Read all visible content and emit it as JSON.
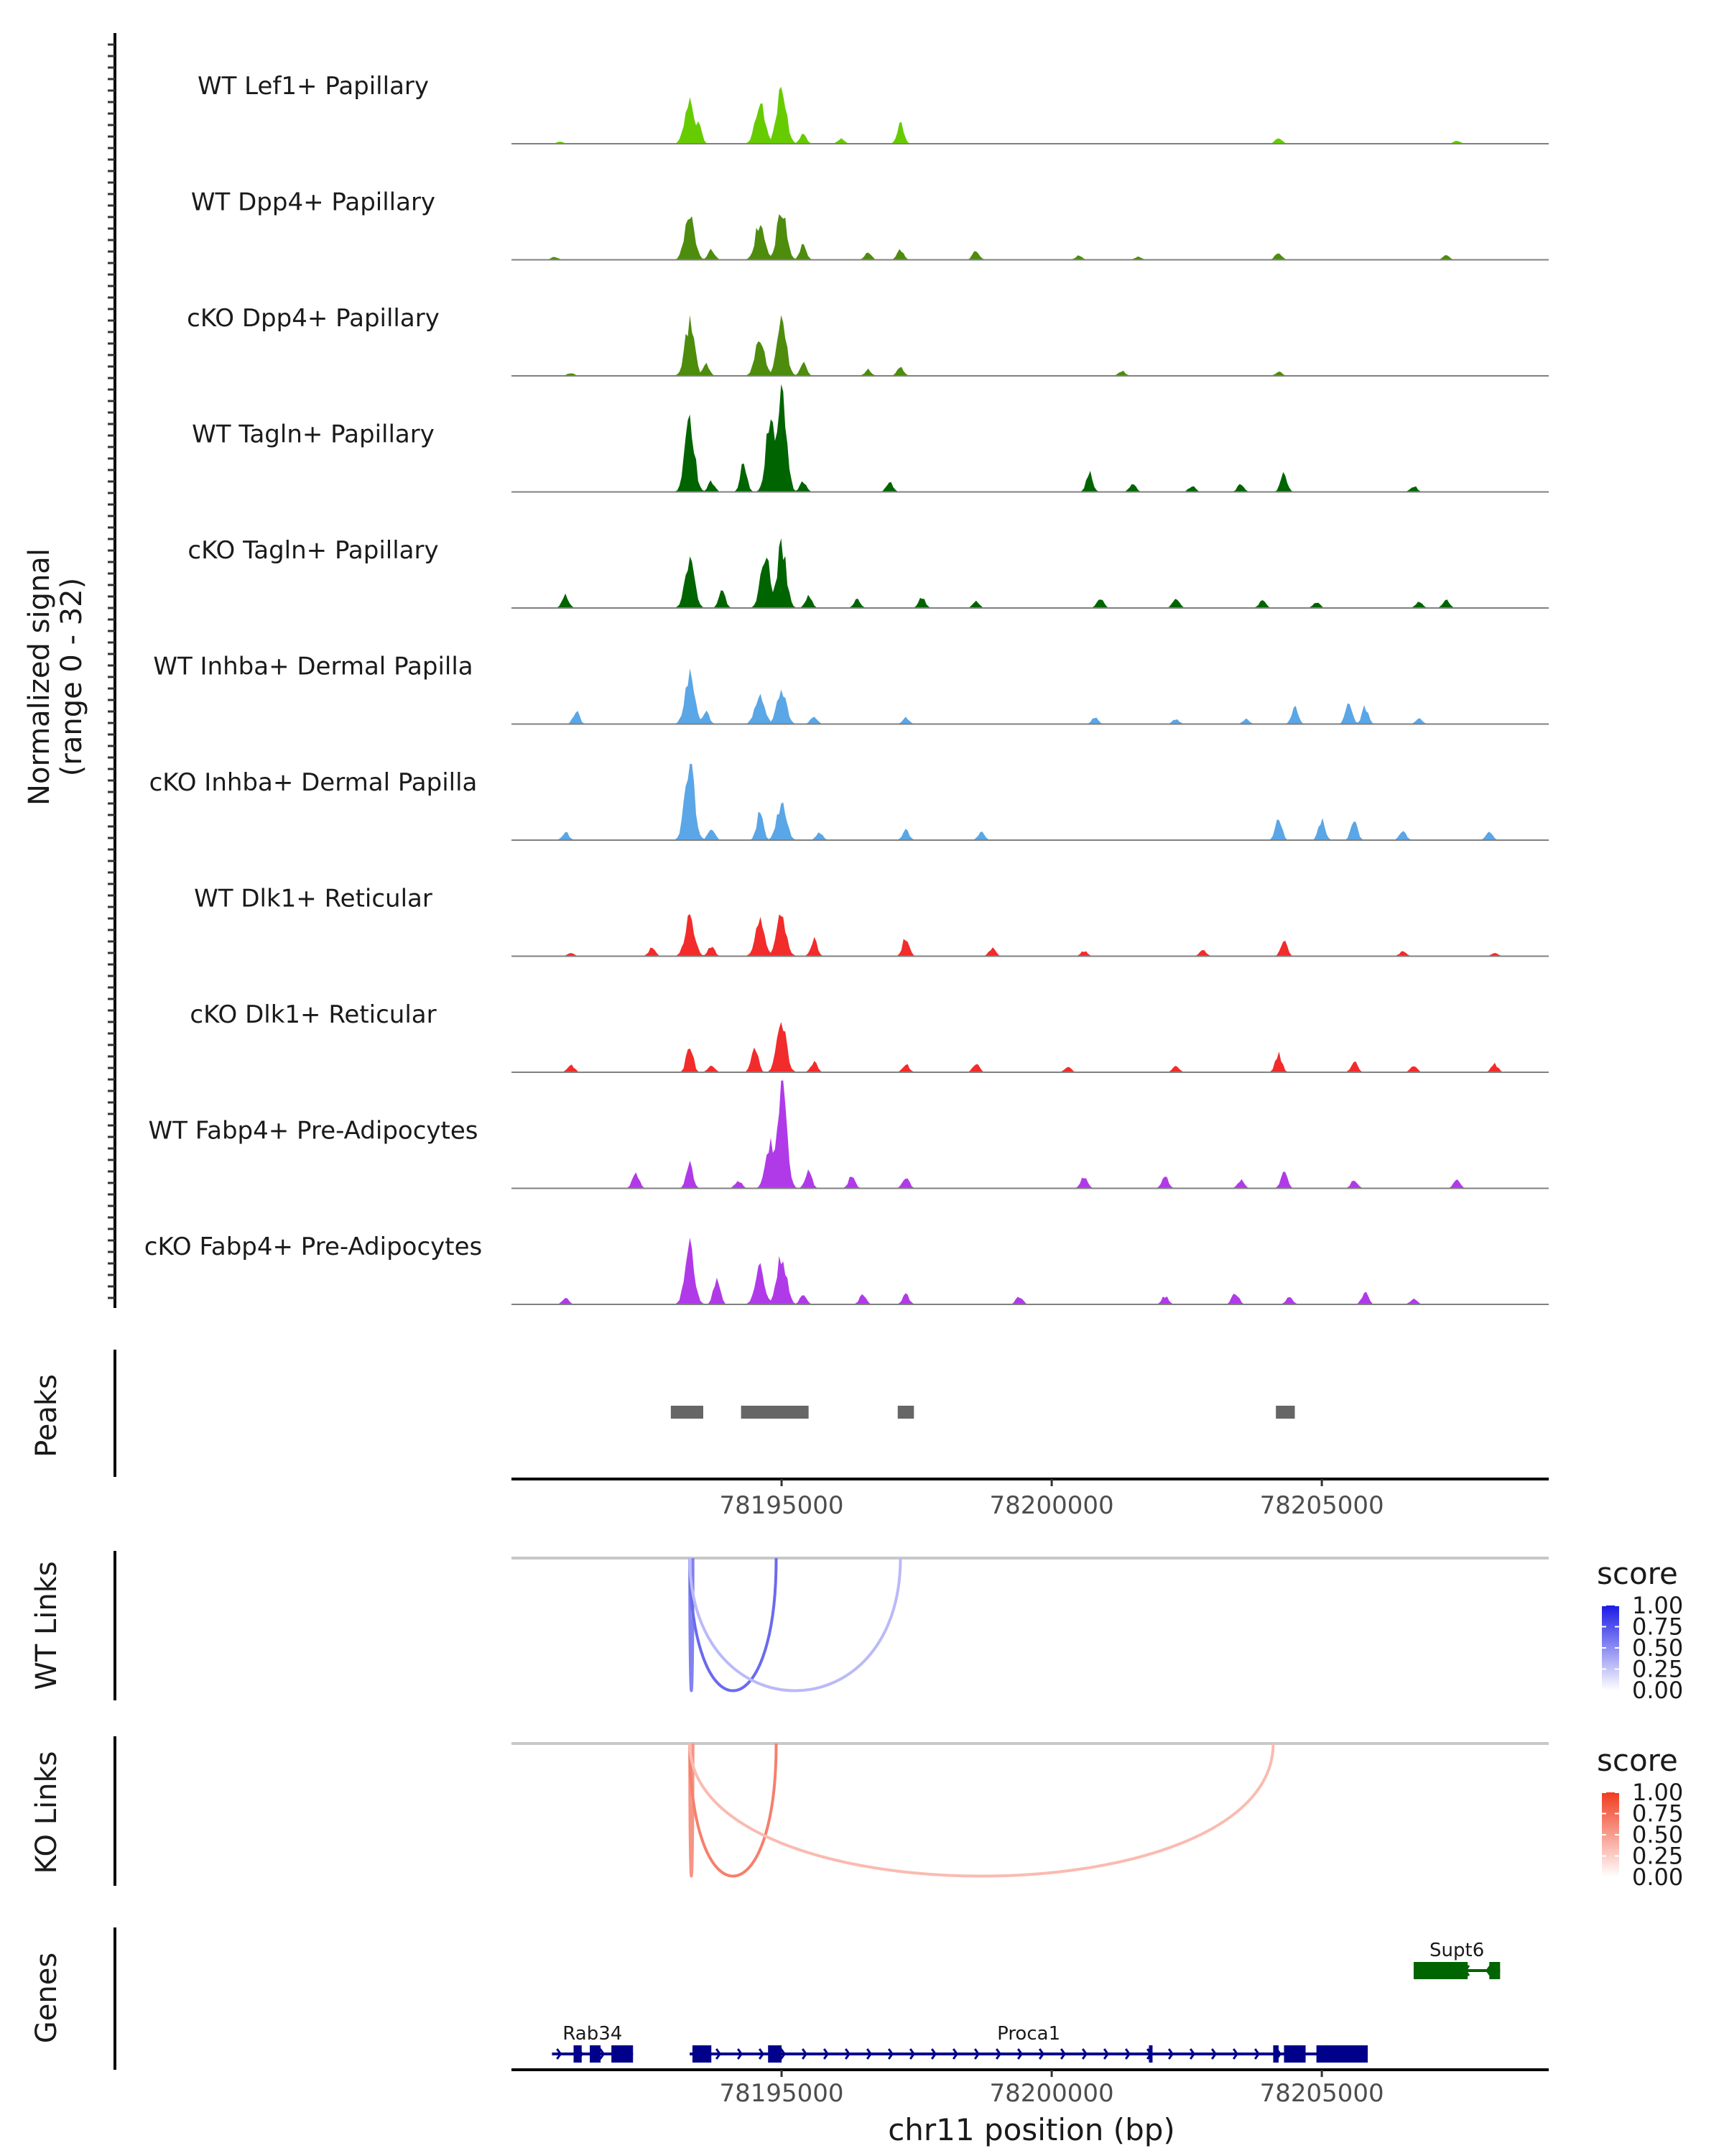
{
  "chart_data": {
    "type": "area",
    "title": "",
    "xlabel": "chr11 position (bp)",
    "xlim": [
      78190000,
      78209200
    ],
    "x_ticks": [
      78195000,
      78200000,
      78205000
    ],
    "x_tick_labels": [
      "78195000",
      "78200000",
      "78205000"
    ],
    "ylabel_line1": "Normalized signal",
    "ylabel_line2": "(range 0 - 32)",
    "ylim": [
      0,
      32
    ],
    "track_labels": {
      "peaks": "Peaks",
      "wt_links": "WT Links",
      "ko_links": "KO Links",
      "genes": "Genes"
    },
    "coverage_tracks": [
      {
        "name": "WT Lef1+ Papillary",
        "color": "#66cc00",
        "peaks": [
          [
            78190900,
            0.02
          ],
          [
            78193300,
            0.45
          ],
          [
            78193450,
            0.25
          ],
          [
            78194600,
            0.4
          ],
          [
            78195000,
            0.55
          ],
          [
            78195400,
            0.1
          ],
          [
            78196100,
            0.05
          ],
          [
            78197200,
            0.2
          ],
          [
            78204200,
            0.06
          ],
          [
            78207500,
            0.03
          ]
        ]
      },
      {
        "name": "WT Dpp4+ Papillary",
        "color": "#4d8c0d",
        "peaks": [
          [
            78190800,
            0.03
          ],
          [
            78193300,
            0.46
          ],
          [
            78193700,
            0.1
          ],
          [
            78194600,
            0.36
          ],
          [
            78195000,
            0.47
          ],
          [
            78195400,
            0.14
          ],
          [
            78196600,
            0.07
          ],
          [
            78197200,
            0.1
          ],
          [
            78198600,
            0.09
          ],
          [
            78200500,
            0.04
          ],
          [
            78201600,
            0.03
          ],
          [
            78204200,
            0.07
          ],
          [
            78207300,
            0.04
          ]
        ]
      },
      {
        "name": "cKO Dpp4+ Papillary",
        "color": "#4d8c0d",
        "peaks": [
          [
            78191100,
            0.03
          ],
          [
            78193300,
            0.5
          ],
          [
            78193600,
            0.12
          ],
          [
            78194600,
            0.35
          ],
          [
            78195000,
            0.5
          ],
          [
            78195400,
            0.12
          ],
          [
            78196600,
            0.06
          ],
          [
            78197200,
            0.09
          ],
          [
            78201300,
            0.05
          ],
          [
            78204200,
            0.04
          ]
        ]
      },
      {
        "name": "WT Tagln+ Papillary",
        "color": "#006400",
        "peaks": [
          [
            78193300,
            0.66
          ],
          [
            78193700,
            0.1
          ],
          [
            78194300,
            0.28
          ],
          [
            78194800,
            0.7
          ],
          [
            78195000,
            0.93
          ],
          [
            78195400,
            0.1
          ],
          [
            78197000,
            0.1
          ],
          [
            78200700,
            0.18
          ],
          [
            78201500,
            0.08
          ],
          [
            78202600,
            0.06
          ],
          [
            78203500,
            0.08
          ],
          [
            78204300,
            0.18
          ],
          [
            78206700,
            0.06
          ]
        ]
      },
      {
        "name": "cKO Tagln+ Papillary",
        "color": "#006400",
        "peaks": [
          [
            78191000,
            0.12
          ],
          [
            78193300,
            0.45
          ],
          [
            78193900,
            0.16
          ],
          [
            78194700,
            0.5
          ],
          [
            78195000,
            0.59
          ],
          [
            78195500,
            0.12
          ],
          [
            78196400,
            0.08
          ],
          [
            78197600,
            0.1
          ],
          [
            78198600,
            0.06
          ],
          [
            78200900,
            0.1
          ],
          [
            78202300,
            0.1
          ],
          [
            78203900,
            0.08
          ],
          [
            78204900,
            0.06
          ],
          [
            78206800,
            0.06
          ],
          [
            78207300,
            0.08
          ]
        ]
      },
      {
        "name": "WT Inhba+ Dermal Papilla",
        "color": "#5aa6e6",
        "peaks": [
          [
            78191200,
            0.12
          ],
          [
            78193300,
            0.48
          ],
          [
            78193600,
            0.12
          ],
          [
            78194600,
            0.31
          ],
          [
            78195000,
            0.32
          ],
          [
            78195600,
            0.08
          ],
          [
            78197300,
            0.06
          ],
          [
            78200800,
            0.06
          ],
          [
            78202300,
            0.05
          ],
          [
            78203600,
            0.05
          ],
          [
            78204500,
            0.16
          ],
          [
            78205500,
            0.24
          ],
          [
            78205800,
            0.16
          ],
          [
            78206800,
            0.05
          ]
        ]
      },
      {
        "name": "cKO Inhba+ Dermal Papilla",
        "color": "#5aa6e6",
        "peaks": [
          [
            78191000,
            0.08
          ],
          [
            78193300,
            0.77
          ],
          [
            78193700,
            0.12
          ],
          [
            78194600,
            0.27
          ],
          [
            78195000,
            0.37
          ],
          [
            78195700,
            0.08
          ],
          [
            78197300,
            0.1
          ],
          [
            78198700,
            0.08
          ],
          [
            78204200,
            0.22
          ],
          [
            78205000,
            0.2
          ],
          [
            78205600,
            0.2
          ],
          [
            78206500,
            0.1
          ],
          [
            78208100,
            0.08
          ]
        ]
      },
      {
        "name": "WT Dlk1+ Reticular",
        "color": "#f22b2b",
        "peaks": [
          [
            78191100,
            0.03
          ],
          [
            78192600,
            0.08
          ],
          [
            78193300,
            0.37
          ],
          [
            78193700,
            0.1
          ],
          [
            78194600,
            0.33
          ],
          [
            78195000,
            0.39
          ],
          [
            78195600,
            0.16
          ],
          [
            78197300,
            0.18
          ],
          [
            78198900,
            0.08
          ],
          [
            78200600,
            0.05
          ],
          [
            78202800,
            0.06
          ],
          [
            78204300,
            0.14
          ],
          [
            78206500,
            0.05
          ],
          [
            78208200,
            0.03
          ]
        ]
      },
      {
        "name": "cKO Dlk1+ Reticular",
        "color": "#f22b2b",
        "peaks": [
          [
            78191100,
            0.08
          ],
          [
            78193300,
            0.28
          ],
          [
            78193700,
            0.08
          ],
          [
            78194500,
            0.28
          ],
          [
            78195000,
            0.46
          ],
          [
            78195600,
            0.1
          ],
          [
            78197300,
            0.08
          ],
          [
            78198600,
            0.08
          ],
          [
            78200300,
            0.05
          ],
          [
            78202300,
            0.06
          ],
          [
            78204200,
            0.18
          ],
          [
            78205600,
            0.1
          ],
          [
            78206700,
            0.06
          ],
          [
            78208200,
            0.08
          ]
        ]
      },
      {
        "name": "WT Fabp4+ Pre-Adipocytes",
        "color": "#b03ae8",
        "peaks": [
          [
            78192300,
            0.16
          ],
          [
            78193300,
            0.26
          ],
          [
            78194200,
            0.08
          ],
          [
            78194800,
            0.44
          ],
          [
            78195000,
            1.0
          ],
          [
            78195500,
            0.18
          ],
          [
            78196300,
            0.12
          ],
          [
            78197300,
            0.12
          ],
          [
            78200600,
            0.12
          ],
          [
            78202100,
            0.12
          ],
          [
            78203500,
            0.08
          ],
          [
            78204300,
            0.16
          ],
          [
            78205600,
            0.08
          ],
          [
            78207500,
            0.08
          ]
        ]
      },
      {
        "name": "cKO Fabp4+ Pre-Adipocytes",
        "color": "#b03ae8",
        "peaks": [
          [
            78191000,
            0.06
          ],
          [
            78193300,
            0.55
          ],
          [
            78193800,
            0.25
          ],
          [
            78194600,
            0.35
          ],
          [
            78195000,
            0.48
          ],
          [
            78195400,
            0.1
          ],
          [
            78196500,
            0.1
          ],
          [
            78197300,
            0.1
          ],
          [
            78199400,
            0.08
          ],
          [
            78202100,
            0.08
          ],
          [
            78203400,
            0.12
          ],
          [
            78204400,
            0.08
          ],
          [
            78205800,
            0.12
          ],
          [
            78206700,
            0.06
          ]
        ]
      }
    ],
    "peak_regions": [
      [
        78192950,
        78193550
      ],
      [
        78194250,
        78195500
      ],
      [
        78197150,
        78197450
      ],
      [
        78204150,
        78204500
      ]
    ],
    "wt_links": {
      "legend_title": "score",
      "legend_ticks": [
        "1.00",
        "0.75",
        "0.50",
        "0.25",
        "0.00"
      ],
      "colormap": [
        "#ffffff",
        "#1a1ae6"
      ],
      "arcs": [
        {
          "start": 78193300,
          "end": 78193360,
          "score": 0.55
        },
        {
          "start": 78193300,
          "end": 78194900,
          "score": 0.65
        },
        {
          "start": 78193300,
          "end": 78197200,
          "score": 0.3
        }
      ]
    },
    "ko_links": {
      "legend_title": "score",
      "legend_ticks": [
        "1.00",
        "0.75",
        "0.50",
        "0.25",
        "0.00"
      ],
      "colormap": [
        "#ffffff",
        "#f03c1f"
      ],
      "arcs": [
        {
          "start": 78193300,
          "end": 78193360,
          "score": 0.55
        },
        {
          "start": 78193300,
          "end": 78194900,
          "score": 0.65
        },
        {
          "start": 78193300,
          "end": 78204100,
          "score": 0.35
        }
      ]
    },
    "genes": [
      {
        "name": "Rab34",
        "strand": "+",
        "start": 78190750,
        "end": 78192250,
        "color": "#00008b",
        "row": 2,
        "exons": [
          [
            78191150,
            78191300
          ],
          [
            78191450,
            78191650
          ],
          [
            78191850,
            78192250
          ]
        ]
      },
      {
        "name": "Proca1",
        "strand": "+",
        "start": 78193300,
        "end": 78205850,
        "color": "#00008b",
        "row": 2,
        "exons": [
          [
            78193350,
            78193700
          ],
          [
            78194750,
            78195000
          ],
          [
            78201800,
            78201850
          ],
          [
            78204100,
            78204200
          ],
          [
            78204300,
            78204700
          ],
          [
            78204900,
            78205850
          ]
        ]
      },
      {
        "name": "Supt6",
        "strand": "-",
        "start": 78206700,
        "end": 78208300,
        "color": "#006400",
        "row": 1,
        "exons": [
          [
            78206700,
            78207700
          ],
          [
            78208100,
            78208300
          ]
        ]
      }
    ]
  }
}
